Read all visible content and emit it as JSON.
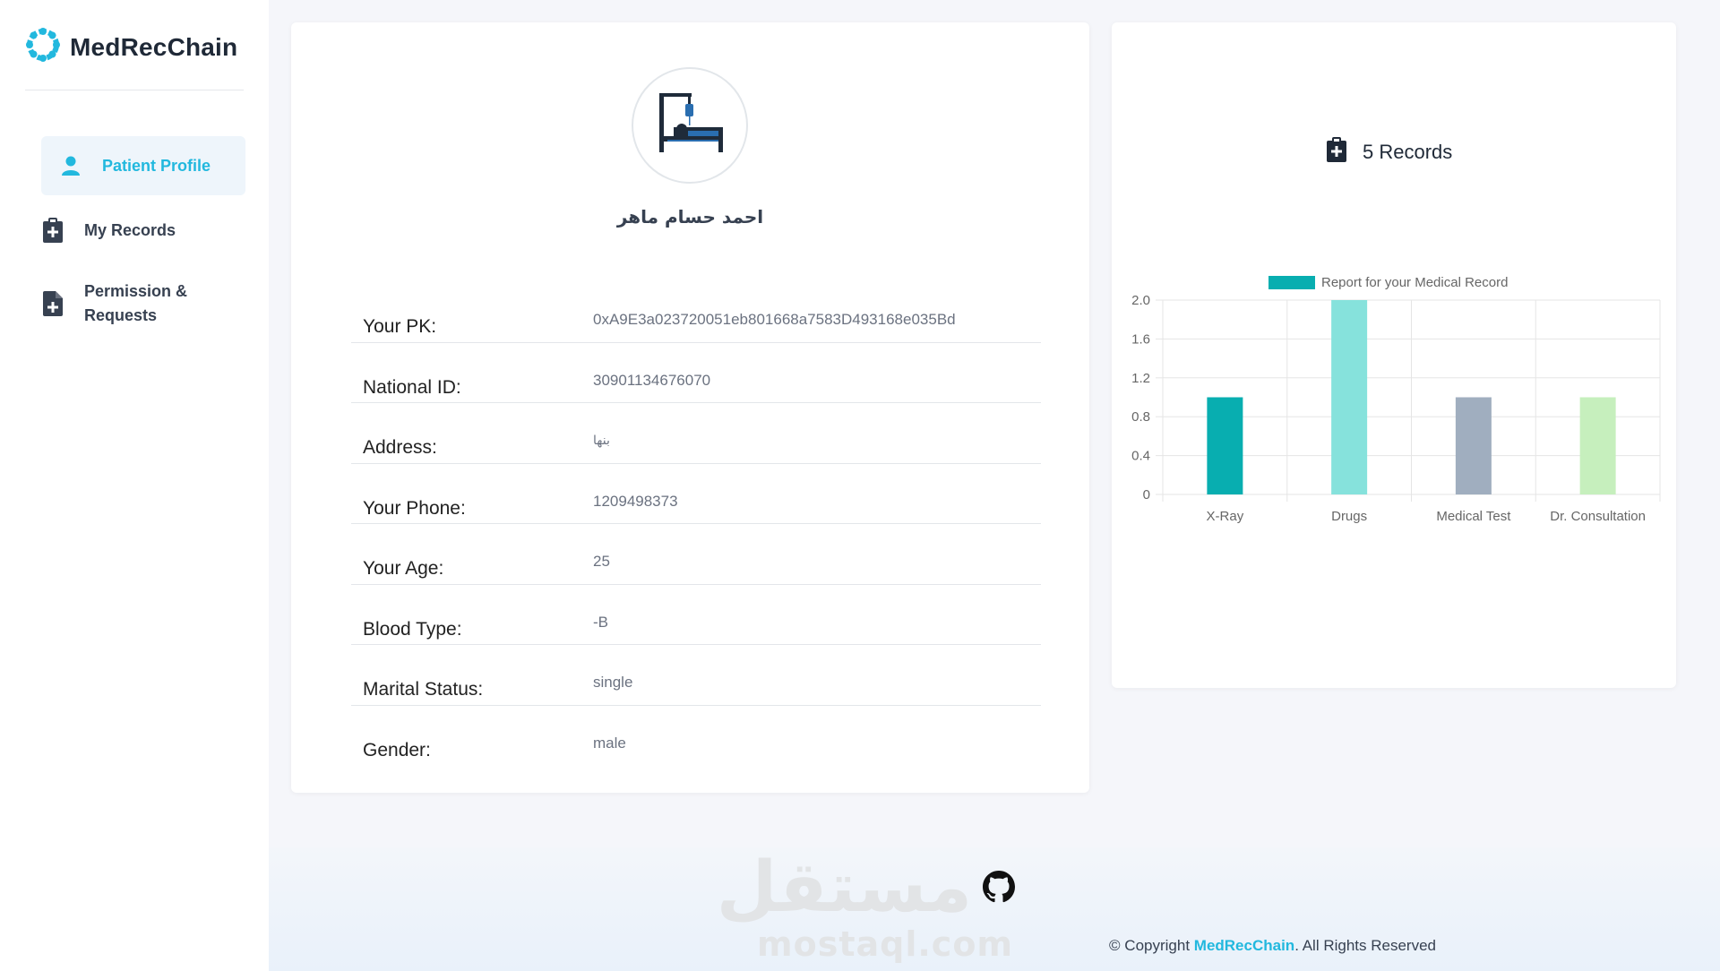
{
  "app": {
    "name": "MedRecChain"
  },
  "sidebar": {
    "items": [
      {
        "label": "Patient Profile",
        "icon": "user-icon",
        "active": true
      },
      {
        "label": "My Records",
        "icon": "clipboard-plus-icon",
        "active": false
      },
      {
        "label": "Permission &",
        "label2": "Requests",
        "icon": "file-plus-icon",
        "active": false
      }
    ]
  },
  "profile": {
    "name": "احمد حسام ماهر",
    "fields": [
      {
        "label": "Your PK:",
        "value": "0xA9E3a023720051eb801668a7583D493168e035Bd"
      },
      {
        "label": "National ID:",
        "value": "30901134676070"
      },
      {
        "label": "Address:",
        "value": "بنها"
      },
      {
        "label": "Your Phone:",
        "value": "1209498373"
      },
      {
        "label": "Your Age:",
        "value": "25"
      },
      {
        "label": "Blood Type:",
        "value": "B-"
      },
      {
        "label": "Marital Status:",
        "value": "single"
      },
      {
        "label": "Gender:",
        "value": "male"
      }
    ]
  },
  "records": {
    "count_label": "5 Records"
  },
  "chart_data": {
    "type": "bar",
    "legend": "Report for your Medical Record",
    "legend_position": "top",
    "categories": [
      "X-Ray",
      "Drugs",
      "Medical Test",
      "Dr. Consultation"
    ],
    "values": [
      1,
      2,
      1,
      1
    ],
    "colors": [
      "#08aeb0",
      "#86e2dc",
      "#a0aebf",
      "#c6efbd"
    ],
    "legend_color": "#08aeb0",
    "ylim": [
      0,
      2
    ],
    "yticks": [
      "2.0",
      "1.6",
      "1.2",
      "0.8",
      "0.4",
      "0"
    ],
    "grid": true
  },
  "footer": {
    "watermark_ar": "مستقل",
    "watermark_lat": "mostaql.com",
    "copyright_prefix": "© Copyright ",
    "copyright_brand": "MedRecChain",
    "copyright_suffix": ". All Rights Reserved"
  }
}
